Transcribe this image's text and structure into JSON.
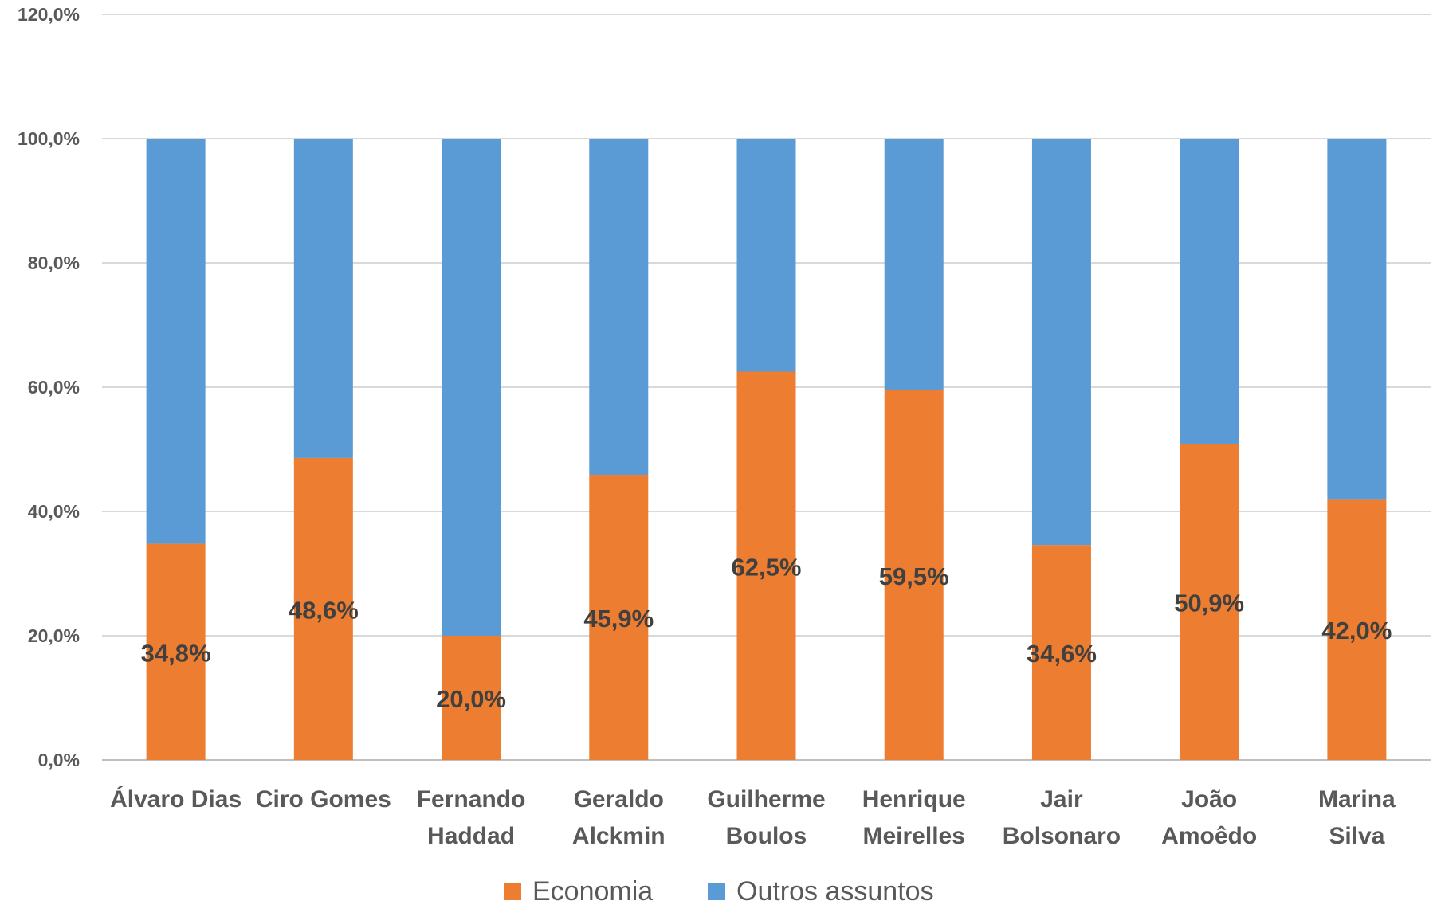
{
  "chart_data": {
    "type": "bar",
    "stacked": true,
    "categories": [
      [
        "Álvaro Dias"
      ],
      [
        "Ciro Gomes"
      ],
      [
        "Fernando",
        "Haddad"
      ],
      [
        "Geraldo",
        "Alckmin"
      ],
      [
        "Guilherme",
        "Boulos"
      ],
      [
        "Henrique",
        "Meirelles"
      ],
      [
        "Jair",
        "Bolsonaro"
      ],
      [
        "João",
        "Amoêdo"
      ],
      [
        "Marina",
        "Silva"
      ]
    ],
    "series": [
      {
        "name": "Economia",
        "color": "#ED7D31",
        "values": [
          34.8,
          48.6,
          20.0,
          45.9,
          62.5,
          59.5,
          34.6,
          50.9,
          42.0
        ],
        "labels": [
          "34,8%",
          "48,6%",
          "20,0%",
          "45,9%",
          "62,5%",
          "59,5%",
          "34,6%",
          "50,9%",
          "42,0%"
        ]
      },
      {
        "name": "Outros assuntos",
        "color": "#5B9BD5",
        "values": [
          65.2,
          51.4,
          80.0,
          54.1,
          37.5,
          40.5,
          65.4,
          49.1,
          58.0
        ]
      }
    ],
    "yticks": [
      "0,0%",
      "20,0%",
      "40,0%",
      "60,0%",
      "80,0%",
      "100,0%",
      "120,0%"
    ],
    "ylim": [
      0,
      120
    ],
    "grid": true,
    "legend": "bottom",
    "title": "",
    "xlabel": "",
    "ylabel": ""
  }
}
